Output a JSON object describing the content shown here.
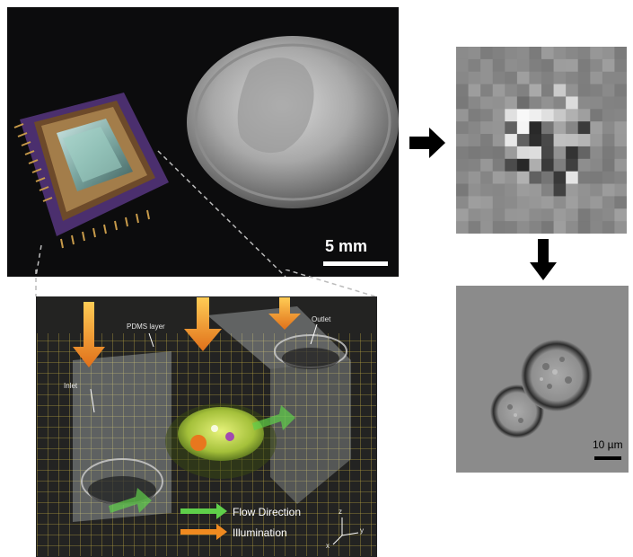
{
  "photo_panel": {
    "scale_label": "5 mm"
  },
  "schematic_panel": {
    "layer_label": "PDMS layer",
    "inlet_label": "Inlet",
    "outlet_label": "Outlet",
    "legend": {
      "flow": "Flow Direction",
      "illumination": "Illumination"
    },
    "axes": {
      "x": "x",
      "y": "y",
      "z": "z"
    }
  },
  "reconstruction_panel": {
    "scale_label": "10 µm"
  },
  "colors": {
    "arrow": "#000000",
    "flow": "#5fcf4a",
    "illumination": "#f08a20"
  }
}
